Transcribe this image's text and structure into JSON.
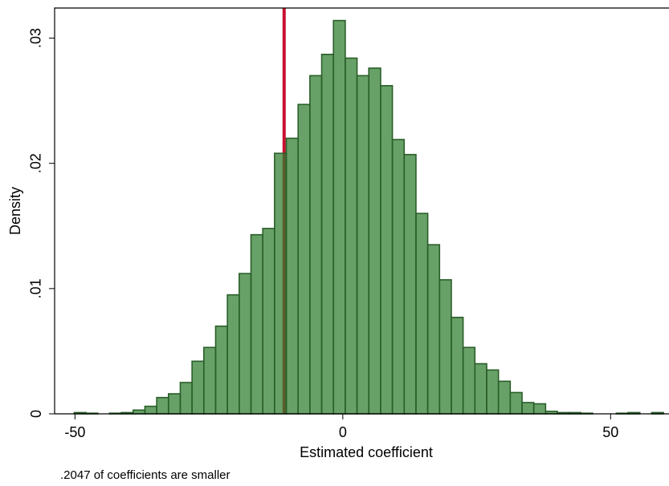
{
  "chart_data": {
    "type": "histogram",
    "xlabel": "Estimated coefficient",
    "ylabel": "Density",
    "note": ".2047 of coefficients are smaller",
    "bins": [
      -50.14,
      -47.94,
      -45.74,
      -43.54,
      -41.34,
      -39.14,
      -36.94,
      -34.74,
      -32.54,
      -30.34,
      -28.14,
      -25.94,
      -23.74,
      -21.54,
      -19.34,
      -17.14,
      -14.94,
      -12.74,
      -10.54,
      -8.34,
      -6.14,
      -3.94,
      -1.74,
      0.46,
      2.66,
      4.86,
      7.06,
      9.26,
      11.46,
      13.66,
      15.86,
      18.06,
      20.26,
      22.46,
      24.66,
      26.86,
      29.06,
      31.26,
      33.46,
      35.66,
      37.86,
      40.06,
      42.26,
      44.46,
      46.66,
      48.86,
      51.06,
      53.26,
      55.46,
      57.66,
      59.86
    ],
    "values": [
      0.0001,
      5e-05,
      0,
      5e-05,
      0.0001,
      0.0003,
      0.0006,
      0.0013,
      0.0016,
      0.0025,
      0.0042,
      0.0053,
      0.007,
      0.0095,
      0.0112,
      0.0143,
      0.0148,
      0.0208,
      0.022,
      0.0247,
      0.027,
      0.0287,
      0.0314,
      0.0284,
      0.027,
      0.0276,
      0.0262,
      0.0219,
      0.0207,
      0.016,
      0.0135,
      0.0107,
      0.0077,
      0.0053,
      0.004,
      0.0035,
      0.0026,
      0.0017,
      0.0009,
      0.0008,
      0.0002,
      0.0001,
      0.0001,
      5e-05,
      0,
      0,
      5e-05,
      0.0001,
      0,
      0.0001
    ],
    "color": "#2e7d2e",
    "edgecolor": "#2a5e2a",
    "reference_line": {
      "value": -10.95,
      "color": "#c8102e"
    },
    "xlim": [
      -53.8,
      60.9
    ],
    "xticks": [
      -50,
      0,
      50
    ],
    "ylim": [
      0,
      0.0324
    ],
    "yticks": [
      0,
      {
        "value": 0.01,
        "label": ".01"
      },
      {
        "value": 0.02,
        "label": ".02"
      },
      {
        "value": 0.03,
        "label": ".03"
      }
    ]
  }
}
